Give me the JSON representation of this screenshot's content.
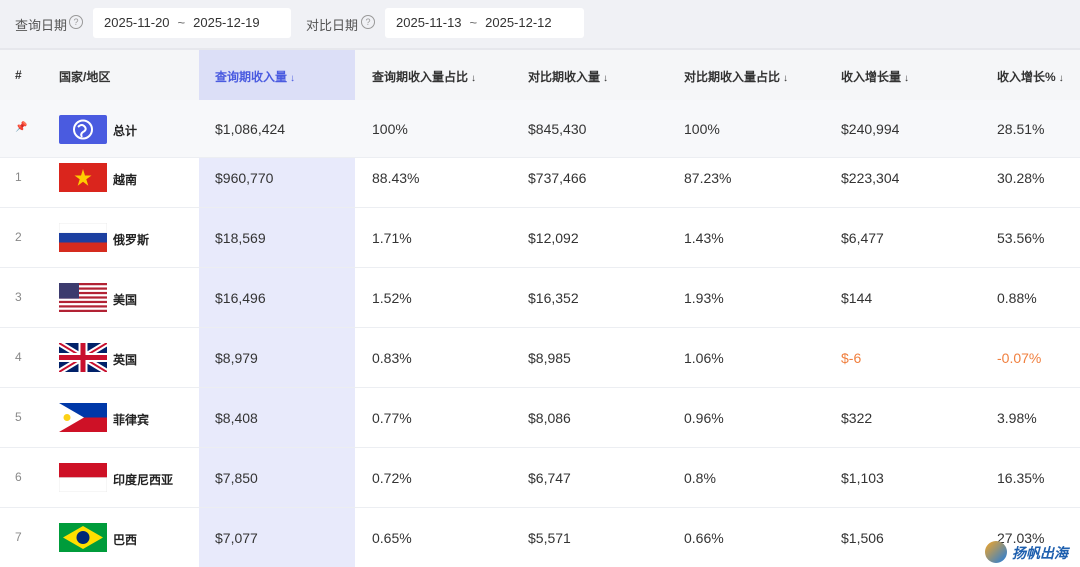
{
  "filters": {
    "query_label": "查询日期",
    "query_start": "2025-11-20",
    "query_end": "2025-12-19",
    "compare_label": "对比日期",
    "compare_start": "2025-11-13",
    "compare_end": "2025-12-12",
    "range_sep": "~"
  },
  "columns": {
    "index": "#",
    "country": "国家/地区",
    "query_revenue": "查询期收入量",
    "query_share": "查询期收入量占比",
    "compare_revenue": "对比期收入量",
    "compare_share": "对比期收入量占比",
    "growth": "收入增长量",
    "growth_pct": "收入增长%"
  },
  "total": {
    "pin": "📌",
    "name": "总计",
    "query_revenue": "$1,086,424",
    "query_share": "100%",
    "compare_revenue": "$845,430",
    "compare_share": "100%",
    "growth": "$240,994",
    "growth_pct": "28.51%"
  },
  "rows": [
    {
      "rank": "1",
      "name": "越南",
      "flag": "vietnam",
      "query_revenue": "$960,770",
      "query_share": "88.43%",
      "compare_revenue": "$737,466",
      "compare_share": "87.23%",
      "growth": "$223,304",
      "growth_pct": "30.28%"
    },
    {
      "rank": "2",
      "name": "俄罗斯",
      "flag": "russia",
      "query_revenue": "$18,569",
      "query_share": "1.71%",
      "compare_revenue": "$12,092",
      "compare_share": "1.43%",
      "growth": "$6,477",
      "growth_pct": "53.56%"
    },
    {
      "rank": "3",
      "name": "美国",
      "flag": "usa",
      "query_revenue": "$16,496",
      "query_share": "1.52%",
      "compare_revenue": "$16,352",
      "compare_share": "1.93%",
      "growth": "$144",
      "growth_pct": "0.88%"
    },
    {
      "rank": "4",
      "name": "英国",
      "flag": "uk",
      "query_revenue": "$8,979",
      "query_share": "0.83%",
      "compare_revenue": "$8,985",
      "compare_share": "1.06%",
      "growth": "$-6",
      "growth_pct": "-0.07%"
    },
    {
      "rank": "5",
      "name": "菲律宾",
      "flag": "philippines",
      "query_revenue": "$8,408",
      "query_share": "0.77%",
      "compare_revenue": "$8,086",
      "compare_share": "0.96%",
      "growth": "$322",
      "growth_pct": "3.98%"
    },
    {
      "rank": "6",
      "name": "印度尼西亚",
      "flag": "indonesia",
      "query_revenue": "$7,850",
      "query_share": "0.72%",
      "compare_revenue": "$6,747",
      "compare_share": "0.8%",
      "growth": "$1,103",
      "growth_pct": "16.35%"
    },
    {
      "rank": "7",
      "name": "巴西",
      "flag": "brazil",
      "query_revenue": "$7,077",
      "query_share": "0.65%",
      "compare_revenue": "$5,571",
      "compare_share": "0.66%",
      "growth": "$1,506",
      "growth_pct": "27.03%"
    }
  ],
  "watermark": "扬帆出海",
  "colors": {
    "accent": "#4a5be0",
    "highlight": "#e8eafb",
    "negative": "#f07f3e"
  }
}
